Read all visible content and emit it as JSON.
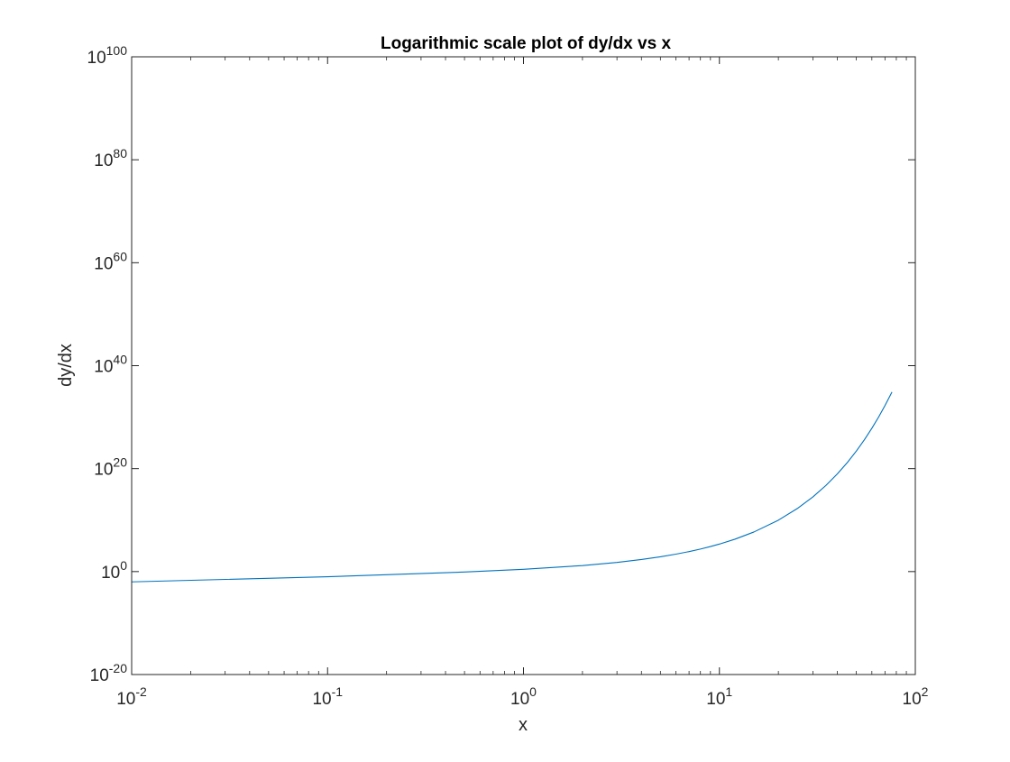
{
  "chart_data": {
    "type": "line",
    "title": "Logarithmic scale plot of dy/dx vs x",
    "xlabel": "x",
    "ylabel": "dy/dx",
    "xscale": "log",
    "yscale": "log",
    "xlim": [
      0.01,
      100
    ],
    "ylim": [
      1e-20,
      1e+100
    ],
    "grid": false,
    "box": true,
    "xticks": [
      {
        "base": "10",
        "exp": "-2",
        "value": 0.01
      },
      {
        "base": "10",
        "exp": "-1",
        "value": 0.1
      },
      {
        "base": "10",
        "exp": "0",
        "value": 1
      },
      {
        "base": "10",
        "exp": "1",
        "value": 10
      },
      {
        "base": "10",
        "exp": "2",
        "value": 100
      }
    ],
    "yticks": [
      {
        "base": "10",
        "exp": "-20",
        "value": 1e-20
      },
      {
        "base": "10",
        "exp": "0",
        "value": 1
      },
      {
        "base": "10",
        "exp": "20",
        "value": 1e+20
      },
      {
        "base": "10",
        "exp": "40",
        "value": 1e+40
      },
      {
        "base": "10",
        "exp": "60",
        "value": 1e+60
      },
      {
        "base": "10",
        "exp": "80",
        "value": 1e+80
      },
      {
        "base": "10",
        "exp": "100",
        "value": 1e+100
      }
    ],
    "series": [
      {
        "color": "#0072BD",
        "x": [
          0.01,
          0.1,
          0.5,
          1,
          2,
          3,
          4,
          5,
          6,
          7,
          8,
          9,
          10,
          12,
          15,
          20,
          25,
          30,
          35,
          40,
          45,
          50,
          55,
          60,
          65,
          70,
          76
        ],
        "y": [
          0.01,
          0.1,
          0.82,
          2.72,
          14.8,
          60.3,
          218,
          742,
          2420,
          7670,
          23800,
          73000,
          220000,
          1950000.0,
          49000000.0,
          9700000000.0,
          1800000000000.0,
          320000000000000.0,
          5.6e+16,
          9.4e+18,
          1.56e+21,
          2.6e+23,
          4.2e+25,
          6.9e+27,
          1.1e+30,
          1.77e+32,
          7.6e+34
        ]
      }
    ]
  }
}
